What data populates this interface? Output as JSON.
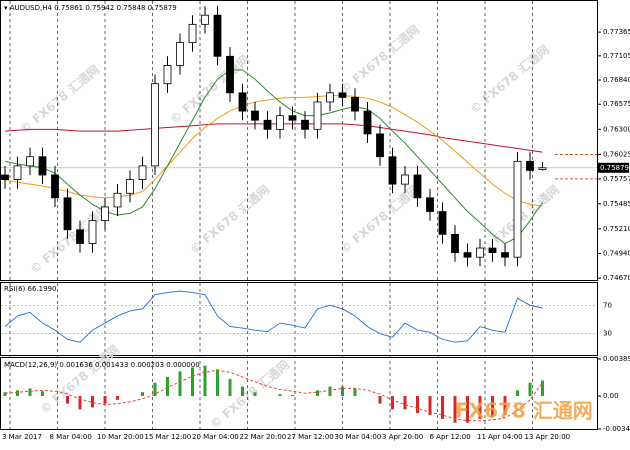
{
  "chart_data": {
    "type": "candlestick",
    "symbol": "▾ AUDUSD,H4",
    "x_labels": [
      "3 Mar 2017",
      "8 Mar 04:00",
      "10 Mar 20:00",
      "15 Mar 12:00",
      "20 Mar 04:00",
      "22 Mar 20:00",
      "27 Mar 12:00",
      "30 Mar 04:00",
      "3 Apr 20:00",
      "6 Apr 12:00",
      "11 Apr 04:00",
      "13 Apr 20:00"
    ],
    "open": [
      0.758,
      0.7575,
      0.759,
      0.76,
      0.758,
      0.7555,
      0.752,
      0.7505,
      0.753,
      0.7545,
      0.756,
      0.7575,
      0.759,
      0.768,
      0.77,
      0.7725,
      0.7745,
      0.7755,
      0.771,
      0.767,
      0.765,
      0.764,
      0.763,
      0.7645,
      0.764,
      0.763,
      0.766,
      0.767,
      0.7665,
      0.765,
      0.7625,
      0.76,
      0.757,
      0.758,
      0.7555,
      0.754,
      0.7515,
      0.7495,
      0.749,
      0.75,
      0.7495,
      0.749,
      0.7595,
      0.75861
    ],
    "high": [
      0.759,
      0.76,
      0.761,
      0.761,
      0.759,
      0.7565,
      0.753,
      0.754,
      0.7555,
      0.757,
      0.7585,
      0.76,
      0.769,
      0.771,
      0.7735,
      0.7755,
      0.7765,
      0.7765,
      0.772,
      0.768,
      0.766,
      0.765,
      0.7655,
      0.7655,
      0.765,
      0.767,
      0.768,
      0.768,
      0.7675,
      0.766,
      0.7635,
      0.761,
      0.759,
      0.759,
      0.7565,
      0.755,
      0.7525,
      0.7505,
      0.751,
      0.751,
      0.7505,
      0.7605,
      0.7605,
      0.75942
    ],
    "low": [
      0.7565,
      0.7565,
      0.758,
      0.757,
      0.7545,
      0.751,
      0.7495,
      0.7495,
      0.752,
      0.7535,
      0.755,
      0.7565,
      0.758,
      0.767,
      0.769,
      0.7715,
      0.7735,
      0.77,
      0.766,
      0.764,
      0.763,
      0.762,
      0.762,
      0.763,
      0.762,
      0.762,
      0.765,
      0.7655,
      0.764,
      0.7615,
      0.759,
      0.756,
      0.756,
      0.7545,
      0.753,
      0.7505,
      0.7485,
      0.748,
      0.748,
      0.7485,
      0.748,
      0.748,
      0.7575,
      0.75848
    ],
    "close": [
      0.7575,
      0.759,
      0.76,
      0.758,
      0.7555,
      0.752,
      0.7505,
      0.753,
      0.7545,
      0.756,
      0.7575,
      0.759,
      0.768,
      0.77,
      0.7725,
      0.7745,
      0.7755,
      0.771,
      0.767,
      0.765,
      0.764,
      0.763,
      0.7645,
      0.764,
      0.763,
      0.766,
      0.767,
      0.7665,
      0.765,
      0.7625,
      0.76,
      0.757,
      0.758,
      0.7555,
      0.754,
      0.7515,
      0.7495,
      0.749,
      0.75,
      0.7495,
      0.749,
      0.7595,
      0.7585,
      0.75879
    ],
    "ylim": [
      0.7465,
      0.7764
    ],
    "yticks": [
      0.77365,
      0.77105,
      {
        "value": 0.7684,
        "label": "0.76840"
      },
      0.76575,
      {
        "value": 0.763,
        "label": "0.76300"
      },
      0.76025,
      0.75757,
      0.75485,
      {
        "value": 0.7521,
        "label": "0.75210"
      },
      {
        "value": 0.7494,
        "label": "0.74940"
      },
      {
        "value": 0.7467,
        "label": "0.74670"
      }
    ],
    "level_color": "#e8522a",
    "series": [
      {
        "color": "#c8102e",
        "values": [
          0.7628,
          0.7629,
          0.763,
          0.763,
          0.763,
          0.7629,
          0.7628,
          0.7628,
          0.7628,
          0.7628,
          0.7629,
          0.763,
          0.7631,
          0.7632,
          0.7633,
          0.7634,
          0.7635,
          0.7636,
          0.7636,
          0.7636,
          0.7636,
          0.7636,
          0.7636,
          0.7636,
          0.7636,
          0.7636,
          0.7636,
          0.7636,
          0.7635,
          0.7634,
          0.7632,
          0.763,
          0.7628,
          0.7626,
          0.7624,
          0.7621,
          0.7619,
          0.7617,
          0.7615,
          0.7613,
          0.7611,
          0.7609,
          0.7607,
          0.7605
        ]
      },
      {
        "color": "#f39c12",
        "values": [
          0.7575,
          0.7572,
          0.757,
          0.7568,
          0.7565,
          0.7562,
          0.7558,
          0.7556,
          0.7555,
          0.7556,
          0.7558,
          0.7562,
          0.7575,
          0.759,
          0.7605,
          0.762,
          0.7632,
          0.7642,
          0.765,
          0.7656,
          0.766,
          0.7662,
          0.7664,
          0.7665,
          0.7665,
          0.7666,
          0.7667,
          0.7667,
          0.7666,
          0.7664,
          0.766,
          0.7654,
          0.7646,
          0.7638,
          0.7628,
          0.7618,
          0.7606,
          0.7594,
          0.7582,
          0.757,
          0.756,
          0.7552,
          0.7548,
          0.7546
        ]
      },
      {
        "color": "#2e8b2e",
        "values": [
          0.7595,
          0.7592,
          0.759,
          0.7588,
          0.7582,
          0.757,
          0.7558,
          0.7548,
          0.754,
          0.7536,
          0.7538,
          0.7545,
          0.7565,
          0.759,
          0.7615,
          0.764,
          0.7665,
          0.7685,
          0.7695,
          0.7695,
          0.7685,
          0.7672,
          0.766,
          0.765,
          0.7645,
          0.7645,
          0.7648,
          0.7652,
          0.7655,
          0.7652,
          0.7642,
          0.7628,
          0.7615,
          0.76,
          0.7585,
          0.757,
          0.7555,
          0.754,
          0.7528,
          0.7515,
          0.7505,
          0.7512,
          0.753,
          0.755
        ]
      }
    ],
    "rsi": {
      "title": "RSI(6) 66.1990",
      "ylim": [
        0,
        100
      ],
      "yticks": [
        70,
        30
      ],
      "color": "#1e6fd9",
      "values": [
        40,
        55,
        60,
        45,
        35,
        22,
        18,
        35,
        45,
        55,
        62,
        65,
        85,
        88,
        90,
        88,
        85,
        55,
        40,
        38,
        35,
        33,
        45,
        42,
        38,
        65,
        70,
        65,
        55,
        40,
        30,
        25,
        45,
        35,
        32,
        22,
        18,
        20,
        40,
        35,
        32,
        80,
        70,
        66.199
      ]
    },
    "macd": {
      "title": "MACD(12,26,9) 0.001636 0.001433 0.000203 0.000000",
      "ylim": [
        -0.003465,
        0.003894
      ],
      "yticks": [
        0.003894,
        {
          "value": 0,
          "label": "0.00"
        },
        -0.003465
      ],
      "histogram": [
        0.0004,
        0.0006,
        0.0008,
        0.0005,
        0.0,
        -0.0008,
        -0.0014,
        -0.0012,
        -0.0008,
        -0.0004,
        0.0,
        0.0004,
        0.0014,
        0.002,
        0.0026,
        0.003,
        0.0032,
        0.0028,
        0.0018,
        0.001,
        0.0004,
        0.0,
        0.0002,
        0.0001,
        0.0,
        0.0006,
        0.001,
        0.001,
        0.0008,
        0.0,
        -0.0008,
        -0.0014,
        -0.0014,
        -0.0018,
        -0.002,
        -0.0024,
        -0.0028,
        -0.0028,
        -0.0024,
        -0.0022,
        -0.002,
        0.0006,
        0.0014,
        0.001636
      ],
      "signal": [
        0.0003,
        0.0004,
        0.0005,
        0.0006,
        0.0005,
        0.0002,
        -0.0003,
        -0.0007,
        -0.0009,
        -0.0008,
        -0.0006,
        -0.0003,
        0.0002,
        0.0009,
        0.0015,
        0.0021,
        0.0025,
        0.0027,
        0.0025,
        0.002,
        0.0015,
        0.001,
        0.0007,
        0.0005,
        0.0003,
        0.0004,
        0.0006,
        0.0008,
        0.0008,
        0.0006,
        0.0002,
        -0.0004,
        -0.0009,
        -0.0013,
        -0.0017,
        -0.002,
        -0.0024,
        -0.0026,
        -0.0026,
        -0.0025,
        -0.0023,
        -0.0015,
        -0.0004,
        0.001433
      ],
      "up_color": "#2ca02c",
      "down_color": "#d62728",
      "signal_color": "#e74c3c"
    },
    "watermark": "© FX678 汇通网",
    "logo": "FX678 汇通网"
  }
}
